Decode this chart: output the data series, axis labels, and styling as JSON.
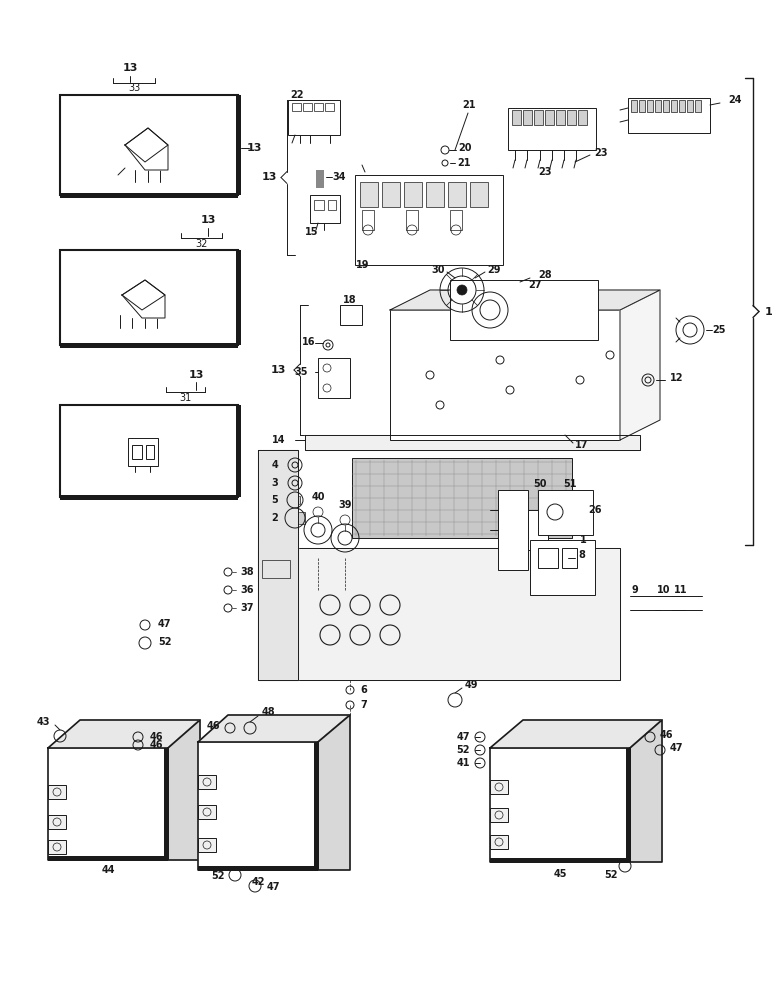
{
  "bg_color": "#ffffff",
  "lc": "#1a1a1a",
  "lw": 0.7,
  "fig_width": 7.72,
  "fig_height": 10.0,
  "note": "All coordinates in figure units (0-1 normalized). y=0 is bottom."
}
